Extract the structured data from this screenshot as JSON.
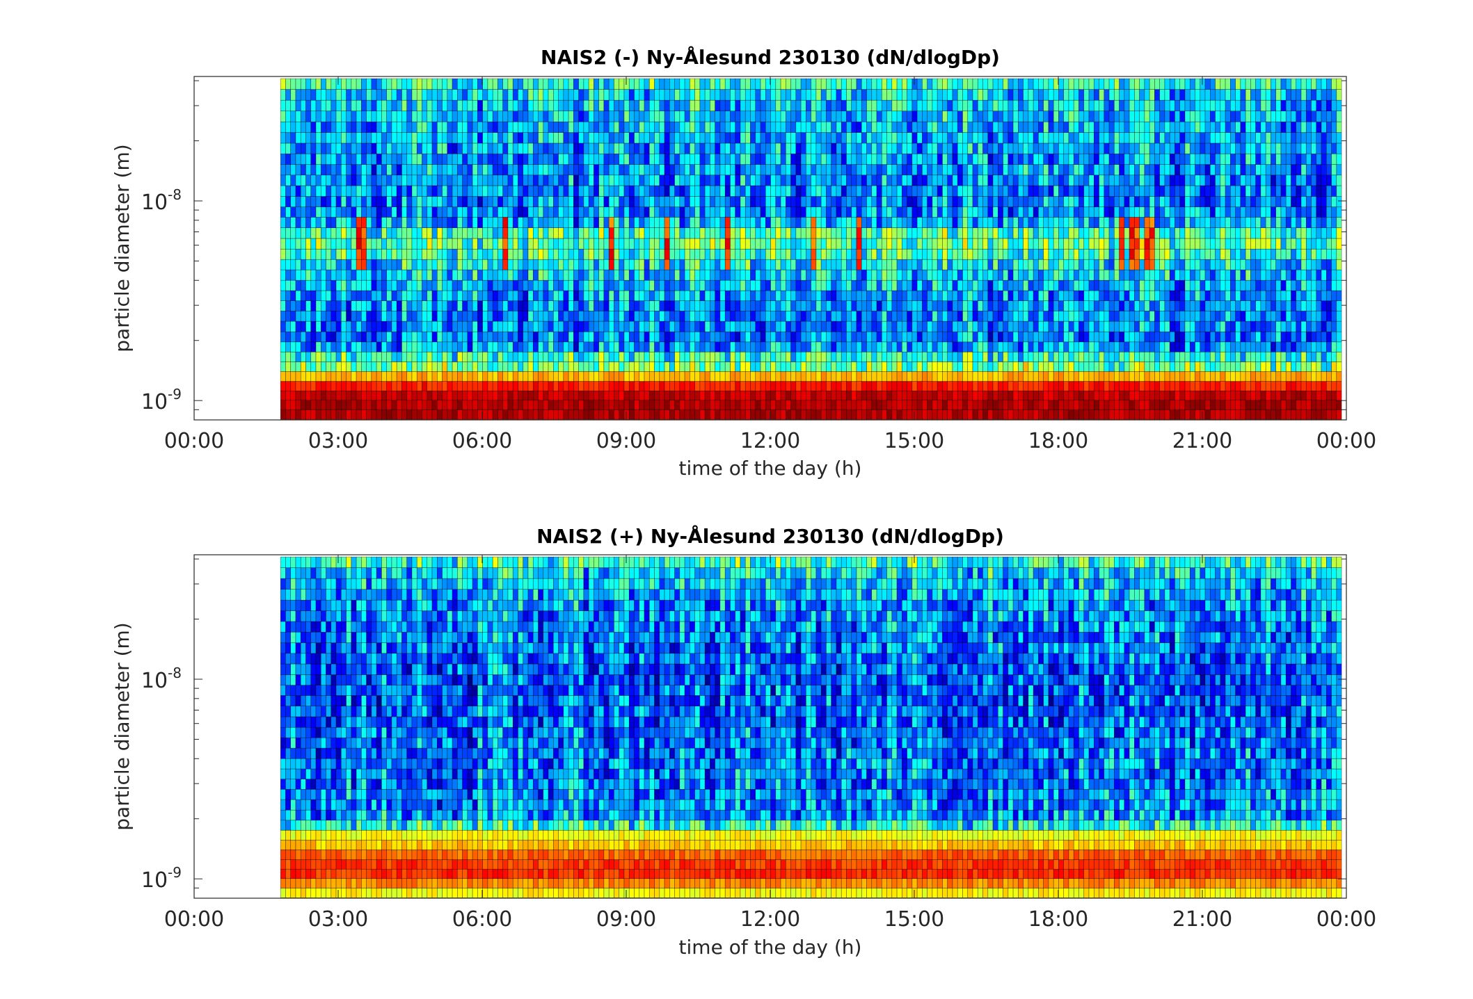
{
  "chart_data": [
    {
      "type": "heatmap",
      "title": "NAIS2 (-) Ny-Ålesund 230130 (dN/dlogDp)",
      "xlabel": "time of the day (h)",
      "ylabel": "particle diameter (m)",
      "x_tick_labels": [
        "00:00",
        "03:00",
        "06:00",
        "09:00",
        "12:00",
        "15:00",
        "18:00",
        "21:00",
        "00:00"
      ],
      "x_tick_values_h": [
        0,
        3,
        6,
        9,
        12,
        15,
        18,
        21,
        24
      ],
      "xlim_h": [
        0,
        24
      ],
      "y_scale": "log",
      "ylim_m": [
        8e-10,
        4.2e-08
      ],
      "y_tick_labels": [
        {
          "base": "10",
          "exp": "-9",
          "value": 1e-09
        },
        {
          "base": "10",
          "exp": "-8",
          "value": 1e-08
        }
      ],
      "data_start_h": 1.8,
      "data_end_h": 23.9,
      "colormap": "jet",
      "rows": [
        {
          "diameter_m": 8.5e-10,
          "level": 0.95
        },
        {
          "diameter_m": 9.5e-10,
          "level": 0.95
        },
        {
          "diameter_m": 1.06e-09,
          "level": 0.93
        },
        {
          "diameter_m": 1.18e-09,
          "level": 0.85
        },
        {
          "diameter_m": 1.32e-09,
          "level": 0.7
        },
        {
          "diameter_m": 1.48e-09,
          "level": 0.5
        },
        {
          "diameter_m": 1.65e-09,
          "level": 0.42
        },
        {
          "diameter_m": 1.86e-09,
          "level": 0.28
        },
        {
          "diameter_m": 2.08e-09,
          "level": 0.25
        },
        {
          "diameter_m": 2.35e-09,
          "level": 0.25
        },
        {
          "diameter_m": 2.65e-09,
          "level": 0.26
        },
        {
          "diameter_m": 2.98e-09,
          "level": 0.27
        },
        {
          "diameter_m": 3.35e-09,
          "level": 0.28
        },
        {
          "diameter_m": 3.77e-09,
          "level": 0.3
        },
        {
          "diameter_m": 4.25e-09,
          "level": 0.33
        },
        {
          "diameter_m": 4.8e-09,
          "level": 0.36
        },
        {
          "diameter_m": 5.4e-09,
          "level": 0.42
        },
        {
          "diameter_m": 6.1e-09,
          "level": 0.46
        },
        {
          "diameter_m": 6.9e-09,
          "level": 0.44
        },
        {
          "diameter_m": 7.8e-09,
          "level": 0.3
        },
        {
          "diameter_m": 8.8e-09,
          "level": 0.26
        },
        {
          "diameter_m": 9.9e-09,
          "level": 0.25
        },
        {
          "diameter_m": 1.12e-08,
          "level": 0.26
        },
        {
          "diameter_m": 1.27e-08,
          "level": 0.27
        },
        {
          "diameter_m": 1.43e-08,
          "level": 0.28
        },
        {
          "diameter_m": 1.62e-08,
          "level": 0.28
        },
        {
          "diameter_m": 1.83e-08,
          "level": 0.29
        },
        {
          "diameter_m": 2.07e-08,
          "level": 0.3
        },
        {
          "diameter_m": 2.34e-08,
          "level": 0.3
        },
        {
          "diameter_m": 2.65e-08,
          "level": 0.31
        },
        {
          "diameter_m": 3e-08,
          "level": 0.32
        },
        {
          "diameter_m": 3.4e-08,
          "level": 0.34
        },
        {
          "diameter_m": 3.85e-08,
          "level": 0.4
        }
      ],
      "spike_times_h": [
        3.4,
        3.55,
        6.5,
        8.7,
        9.85,
        11.15,
        12.95,
        13.8,
        19.35,
        19.5,
        19.65,
        19.9
      ]
    },
    {
      "type": "heatmap",
      "title": "NAIS2 (+) Ny-Ålesund 230130 (dN/dlogDp)",
      "xlabel": "time of the day (h)",
      "ylabel": "particle diameter (m)",
      "x_tick_labels": [
        "00:00",
        "03:00",
        "06:00",
        "09:00",
        "12:00",
        "15:00",
        "18:00",
        "21:00",
        "00:00"
      ],
      "x_tick_values_h": [
        0,
        3,
        6,
        9,
        12,
        15,
        18,
        21,
        24
      ],
      "xlim_h": [
        0,
        24
      ],
      "y_scale": "log",
      "ylim_m": [
        8e-10,
        4.2e-08
      ],
      "y_tick_labels": [
        {
          "base": "10",
          "exp": "-9",
          "value": 1e-09
        },
        {
          "base": "10",
          "exp": "-8",
          "value": 1e-08
        }
      ],
      "data_start_h": 1.8,
      "data_end_h": 23.9,
      "colormap": "jet",
      "rows": [
        {
          "diameter_m": 8.5e-10,
          "level": 0.63
        },
        {
          "diameter_m": 9.5e-10,
          "level": 0.74
        },
        {
          "diameter_m": 1.06e-09,
          "level": 0.83
        },
        {
          "diameter_m": 1.18e-09,
          "level": 0.82
        },
        {
          "diameter_m": 1.32e-09,
          "level": 0.78
        },
        {
          "diameter_m": 1.48e-09,
          "level": 0.68
        },
        {
          "diameter_m": 1.65e-09,
          "level": 0.62
        },
        {
          "diameter_m": 1.86e-09,
          "level": 0.4
        },
        {
          "diameter_m": 2.08e-09,
          "level": 0.28
        },
        {
          "diameter_m": 2.35e-09,
          "level": 0.26
        },
        {
          "diameter_m": 2.65e-09,
          "level": 0.26
        },
        {
          "diameter_m": 2.98e-09,
          "level": 0.25
        },
        {
          "diameter_m": 3.35e-09,
          "level": 0.25
        },
        {
          "diameter_m": 3.77e-09,
          "level": 0.25
        },
        {
          "diameter_m": 4.25e-09,
          "level": 0.24
        },
        {
          "diameter_m": 4.8e-09,
          "level": 0.24
        },
        {
          "diameter_m": 5.4e-09,
          "level": 0.23
        },
        {
          "diameter_m": 6.1e-09,
          "level": 0.22
        },
        {
          "diameter_m": 6.9e-09,
          "level": 0.22
        },
        {
          "diameter_m": 7.8e-09,
          "level": 0.21
        },
        {
          "diameter_m": 8.8e-09,
          "level": 0.21
        },
        {
          "diameter_m": 9.9e-09,
          "level": 0.21
        },
        {
          "diameter_m": 1.12e-08,
          "level": 0.22
        },
        {
          "diameter_m": 1.27e-08,
          "level": 0.23
        },
        {
          "diameter_m": 1.43e-08,
          "level": 0.24
        },
        {
          "diameter_m": 1.62e-08,
          "level": 0.25
        },
        {
          "diameter_m": 1.83e-08,
          "level": 0.26
        },
        {
          "diameter_m": 2.07e-08,
          "level": 0.27
        },
        {
          "diameter_m": 2.34e-08,
          "level": 0.28
        },
        {
          "diameter_m": 2.65e-08,
          "level": 0.3
        },
        {
          "diameter_m": 3e-08,
          "level": 0.32
        },
        {
          "diameter_m": 3.4e-08,
          "level": 0.35
        },
        {
          "diameter_m": 3.85e-08,
          "level": 0.42
        }
      ],
      "spike_times_h": []
    }
  ]
}
